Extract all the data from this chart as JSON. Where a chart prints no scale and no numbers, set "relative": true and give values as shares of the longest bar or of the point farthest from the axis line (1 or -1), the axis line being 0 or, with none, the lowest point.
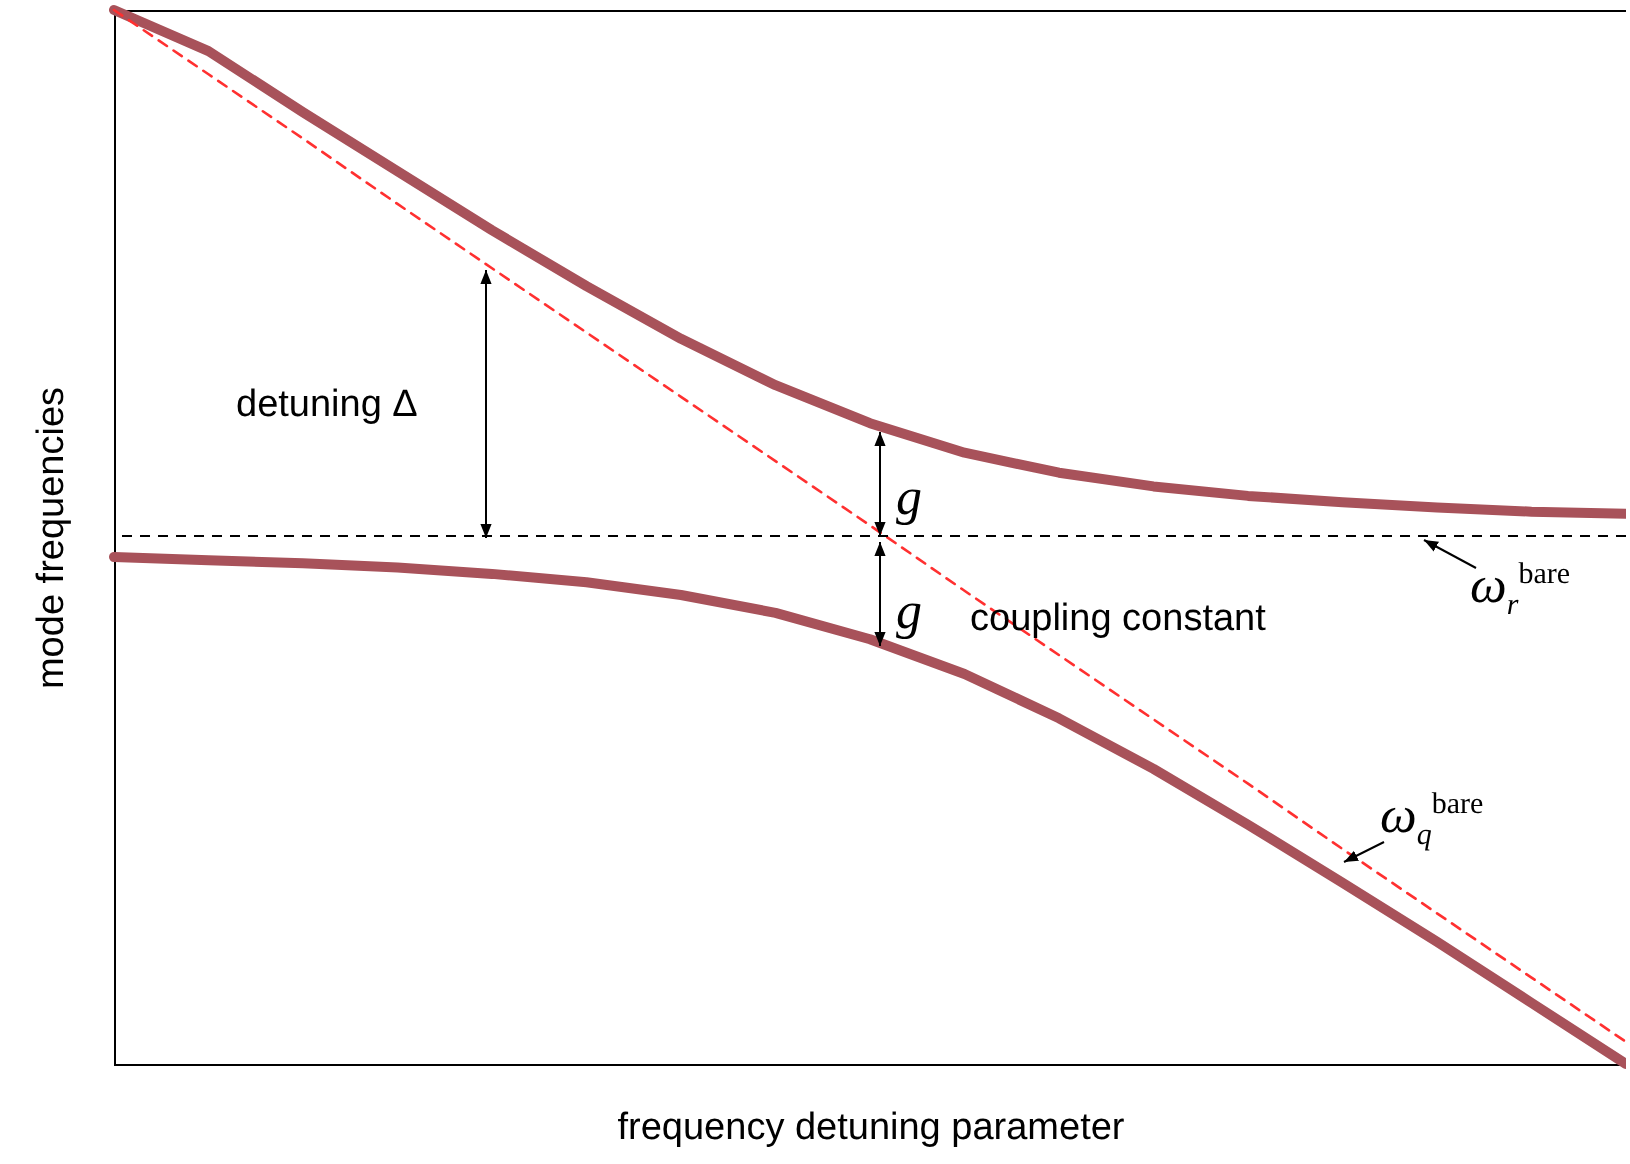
{
  "chart_data": {
    "type": "line",
    "relative": true,
    "xlabel": "frequency detuning parameter",
    "ylabel": "mode frequencies",
    "categories": [
      null,
      null,
      null,
      null,
      null,
      null,
      null,
      null,
      null,
      null,
      null,
      null,
      null,
      null,
      null,
      null,
      null
    ],
    "series": [
      {
        "color": "#a8525a",
        "values": [
          1.0,
          0.961,
          0.903,
          0.847,
          0.791,
          0.738,
          0.688,
          0.644,
          0.608,
          0.58,
          0.561,
          0.548,
          0.539,
          0.533,
          0.528,
          0.524,
          0.522
        ]
      },
      {
        "color": "#a8525a",
        "values": [
          0.481,
          0.478,
          0.475,
          0.471,
          0.465,
          0.457,
          0.445,
          0.428,
          0.403,
          0.37,
          0.328,
          0.28,
          0.227,
          0.172,
          0.116,
          0.058,
          0.0
        ]
      },
      {
        "color": "#ff3030",
        "line_style": "dashed",
        "values": [
          1.0,
          0.939,
          0.878,
          0.816,
          0.755,
          0.694,
          0.633,
          0.572,
          0.511,
          0.449,
          0.388,
          0.327,
          0.266,
          0.204,
          0.143,
          0.082,
          0.021
        ]
      }
    ],
    "ref_lines": [
      {
        "axis": "y",
        "value": 0.501,
        "color": "#000000",
        "line_style": "dashed"
      }
    ],
    "annotations": [
      "detuning Δ",
      "g",
      "g",
      "coupling constant",
      "ω$_{r}$$^{bare}$",
      "ω$_{q}$$^{bare}$"
    ]
  }
}
